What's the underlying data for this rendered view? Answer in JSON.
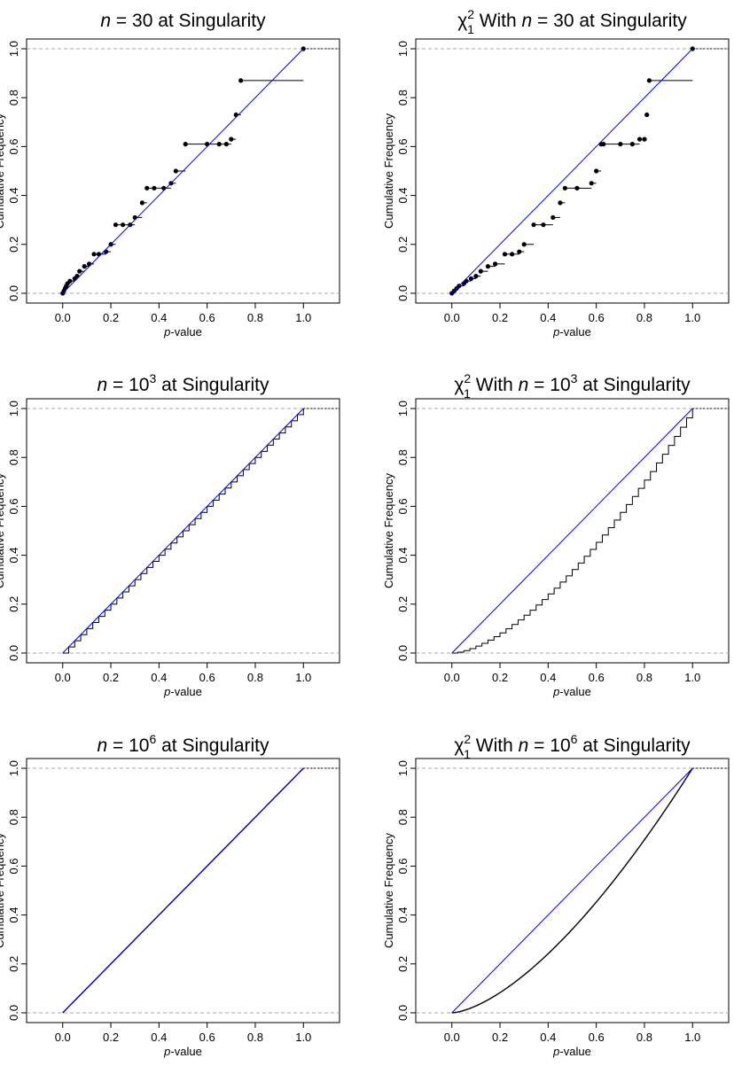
{
  "chart_data": [
    {
      "type": "scatter",
      "title": {
        "prefix": "",
        "n_value": "30",
        "exp": "",
        "suffix": " at Singularity"
      },
      "xlabel": "p-value",
      "ylabel": "Cumulative Frequency",
      "xlim": [
        -0.15,
        1.15
      ],
      "ylim": [
        -0.04,
        1.04
      ],
      "xticks": [
        "0.0",
        "0.2",
        "0.4",
        "0.6",
        "0.8",
        "1.0"
      ],
      "yticks": [
        "0.0",
        "0.2",
        "0.4",
        "0.6",
        "0.8",
        "1.0"
      ],
      "reference_lines": [
        0,
        1
      ],
      "series": [
        {
          "kind": "step",
          "color": "#000000",
          "x": [
            0.0,
            0.005,
            0.01,
            0.015,
            0.02,
            0.03,
            0.05,
            0.06,
            0.07,
            0.09,
            0.11,
            0.13,
            0.15,
            0.18,
            0.2,
            0.22,
            0.25,
            0.28,
            0.3,
            0.33,
            0.35,
            0.38,
            0.42,
            0.45,
            0.47,
            0.51,
            0.6,
            0.65,
            0.68,
            0.7,
            0.72,
            0.74,
            1.0
          ],
          "y": [
            0.0,
            0.01,
            0.02,
            0.03,
            0.04,
            0.05,
            0.06,
            0.07,
            0.09,
            0.11,
            0.12,
            0.16,
            0.16,
            0.17,
            0.2,
            0.28,
            0.28,
            0.28,
            0.31,
            0.37,
            0.43,
            0.43,
            0.43,
            0.45,
            0.5,
            0.61,
            0.61,
            0.61,
            0.61,
            0.63,
            0.73,
            0.87,
            1.0
          ]
        },
        {
          "kind": "line",
          "color": "#0000ff",
          "x": [
            0,
            1
          ],
          "y": [
            0,
            1
          ]
        }
      ]
    },
    {
      "type": "scatter",
      "title": {
        "prefix": "χ",
        "n_value": "30",
        "exp": "",
        "suffix": " at Singularity"
      },
      "xlabel": "p-value",
      "ylabel": "Cumulative Frequency",
      "xlim": [
        -0.15,
        1.15
      ],
      "ylim": [
        -0.04,
        1.04
      ],
      "xticks": [
        "0.0",
        "0.2",
        "0.4",
        "0.6",
        "0.8",
        "1.0"
      ],
      "yticks": [
        "0.0",
        "0.2",
        "0.4",
        "0.6",
        "0.8",
        "1.0"
      ],
      "reference_lines": [
        0,
        1
      ],
      "series": [
        {
          "kind": "step",
          "color": "#000000",
          "x": [
            0.0,
            0.01,
            0.02,
            0.03,
            0.05,
            0.06,
            0.08,
            0.1,
            0.12,
            0.15,
            0.18,
            0.22,
            0.25,
            0.28,
            0.3,
            0.34,
            0.38,
            0.42,
            0.45,
            0.47,
            0.52,
            0.58,
            0.6,
            0.62,
            0.63,
            0.7,
            0.75,
            0.78,
            0.8,
            0.81,
            0.82,
            1.0
          ],
          "y": [
            0.0,
            0.01,
            0.02,
            0.03,
            0.04,
            0.05,
            0.06,
            0.07,
            0.09,
            0.11,
            0.12,
            0.16,
            0.16,
            0.17,
            0.2,
            0.28,
            0.28,
            0.31,
            0.37,
            0.43,
            0.43,
            0.45,
            0.5,
            0.61,
            0.61,
            0.61,
            0.61,
            0.63,
            0.63,
            0.73,
            0.87,
            1.0
          ]
        },
        {
          "kind": "line",
          "color": "#0000ff",
          "x": [
            0,
            1
          ],
          "y": [
            0,
            1
          ]
        }
      ]
    },
    {
      "type": "line",
      "title": {
        "prefix": "",
        "n_value": "10",
        "exp": "3",
        "suffix": " at Singularity"
      },
      "xlabel": "p-value",
      "ylabel": "Cumulative Frequency",
      "xlim": [
        -0.15,
        1.15
      ],
      "ylim": [
        -0.04,
        1.04
      ],
      "xticks": [
        "0.0",
        "0.2",
        "0.4",
        "0.6",
        "0.8",
        "1.0"
      ],
      "yticks": [
        "0.0",
        "0.2",
        "0.4",
        "0.6",
        "0.8",
        "1.0"
      ],
      "reference_lines": [
        0,
        1
      ],
      "series": [
        {
          "kind": "staircase",
          "color": "#000000",
          "steps": 40,
          "curve": "identity"
        },
        {
          "kind": "line",
          "color": "#0000ff",
          "x": [
            0,
            1
          ],
          "y": [
            0,
            1
          ]
        }
      ]
    },
    {
      "type": "line",
      "title": {
        "prefix": "χ",
        "n_value": "10",
        "exp": "3",
        "suffix": " at Singularity"
      },
      "xlabel": "p-value",
      "ylabel": "Cumulative Frequency",
      "xlim": [
        -0.15,
        1.15
      ],
      "ylim": [
        -0.04,
        1.04
      ],
      "xticks": [
        "0.0",
        "0.2",
        "0.4",
        "0.6",
        "0.8",
        "1.0"
      ],
      "yticks": [
        "0.0",
        "0.2",
        "0.4",
        "0.6",
        "0.8",
        "1.0"
      ],
      "reference_lines": [
        0,
        1
      ],
      "series": [
        {
          "kind": "staircase",
          "color": "#000000",
          "steps": 40,
          "curve": "chi"
        },
        {
          "kind": "line",
          "color": "#0000ff",
          "x": [
            0,
            1
          ],
          "y": [
            0,
            1
          ]
        }
      ]
    },
    {
      "type": "line",
      "title": {
        "prefix": "",
        "n_value": "10",
        "exp": "6",
        "suffix": " at Singularity"
      },
      "xlabel": "p-value",
      "ylabel": "Cumulative Frequency",
      "xlim": [
        -0.15,
        1.15
      ],
      "ylim": [
        -0.04,
        1.04
      ],
      "xticks": [
        "0.0",
        "0.2",
        "0.4",
        "0.6",
        "0.8",
        "1.0"
      ],
      "yticks": [
        "0.0",
        "0.2",
        "0.4",
        "0.6",
        "0.8",
        "1.0"
      ],
      "reference_lines": [
        0,
        1
      ],
      "series": [
        {
          "kind": "curve",
          "color": "#000000",
          "curve": "identity"
        },
        {
          "kind": "line",
          "color": "#0000ff",
          "x": [
            0,
            1
          ],
          "y": [
            0,
            1
          ]
        }
      ]
    },
    {
      "type": "line",
      "title": {
        "prefix": "χ",
        "n_value": "10",
        "exp": "6",
        "suffix": " at Singularity"
      },
      "xlabel": "p-value",
      "ylabel": "Cumulative Frequency",
      "xlim": [
        -0.15,
        1.15
      ],
      "ylim": [
        -0.04,
        1.04
      ],
      "xticks": [
        "0.0",
        "0.2",
        "0.4",
        "0.6",
        "0.8",
        "1.0"
      ],
      "yticks": [
        "0.0",
        "0.2",
        "0.4",
        "0.6",
        "0.8",
        "1.0"
      ],
      "reference_lines": [
        0,
        1
      ],
      "series": [
        {
          "kind": "curve",
          "color": "#000000",
          "curve": "chi"
        },
        {
          "kind": "line",
          "color": "#0000ff",
          "x": [
            0,
            1
          ],
          "y": [
            0,
            1
          ]
        }
      ]
    }
  ]
}
